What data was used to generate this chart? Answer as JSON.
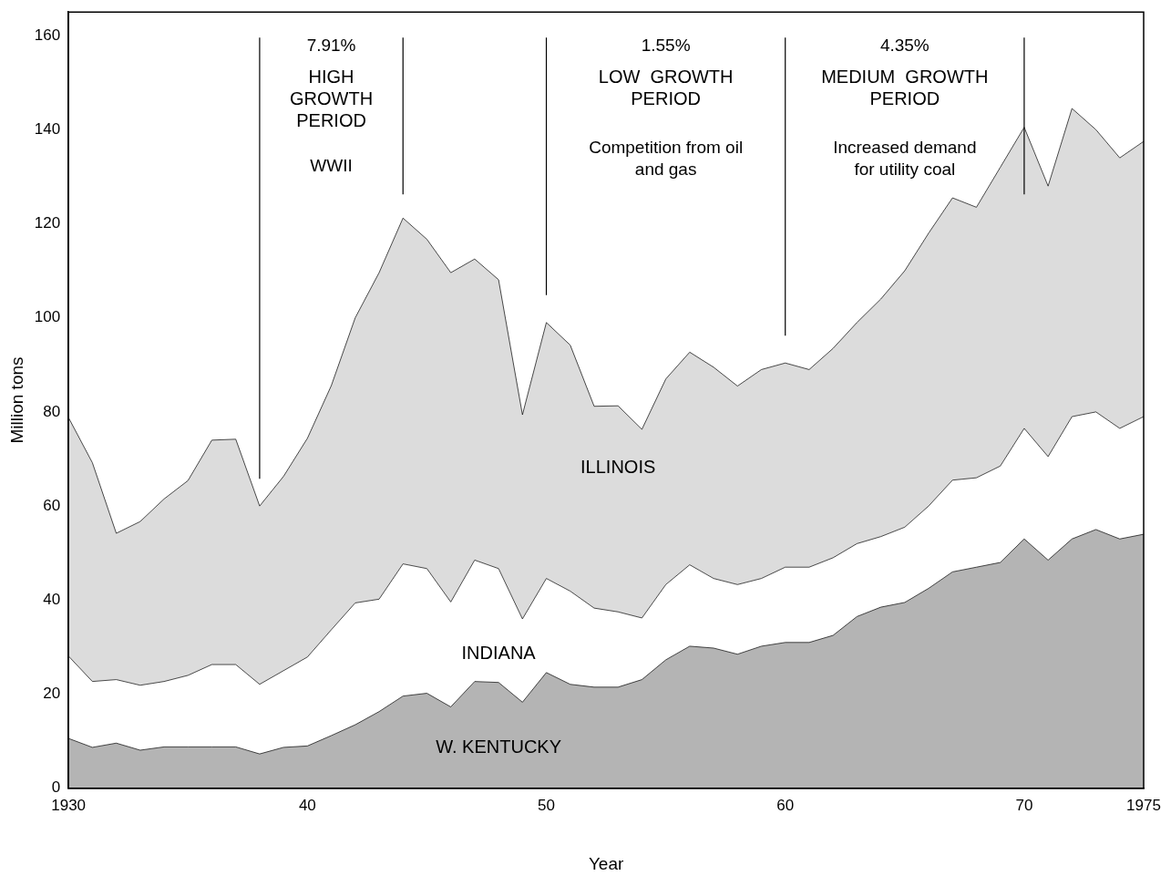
{
  "chart_data": {
    "type": "area",
    "stacked": true,
    "xlabel": "Year",
    "ylabel": "Million tons",
    "x": [
      1930,
      1931,
      1932,
      1933,
      1934,
      1935,
      1936,
      1937,
      1938,
      1939,
      1940,
      1941,
      1942,
      1943,
      1944,
      1945,
      1946,
      1947,
      1948,
      1949,
      1950,
      1951,
      1952,
      1953,
      1954,
      1955,
      1956,
      1957,
      1958,
      1959,
      1960,
      1961,
      1962,
      1963,
      1964,
      1965,
      1966,
      1967,
      1968,
      1969,
      1970,
      1971,
      1972,
      1973,
      1974,
      1975
    ],
    "series": [
      {
        "name": "W. KENTUCKY",
        "color": "#b4b4b4",
        "values": [
          10.6,
          8.7,
          9.6,
          8.1,
          8.8,
          8.8,
          8.8,
          8.8,
          7.3,
          8.7,
          9.0,
          11.2,
          13.5,
          16.3,
          19.6,
          20.2,
          17.3,
          22.7,
          22.5,
          18.3,
          24.6,
          22.1,
          21.5,
          21.5,
          23.1,
          27.3,
          30.2,
          29.8,
          28.5,
          30.2,
          31,
          31,
          32.5,
          36.5,
          38.5,
          39.5,
          42.5,
          46,
          47,
          48,
          53,
          48.5,
          53,
          55,
          53,
          54
        ]
      },
      {
        "name": "INDIANA",
        "color": "#ffffff",
        "values": [
          17.5,
          14.0,
          13.5,
          13.8,
          13.9,
          15.2,
          17.5,
          17.5,
          14.8,
          16.3,
          18.9,
          22.5,
          25.9,
          23.9,
          28.1,
          26.5,
          22.3,
          25.8,
          24.2,
          17.7,
          20.0,
          19.8,
          16.8,
          16.0,
          13.1,
          16.0,
          17.3,
          14.8,
          14.8,
          14.4,
          16,
          16,
          16.5,
          15.5,
          15,
          16,
          17.5,
          19.5,
          19,
          20.5,
          23.5,
          22,
          26,
          25,
          23.5,
          25
        ]
      },
      {
        "name": "ILLINOIS",
        "color": "#dcdcdc",
        "values": [
          50.7,
          46.5,
          31.1,
          34.8,
          38.8,
          41.4,
          47.7,
          47.9,
          37.9,
          41.3,
          46.5,
          51.9,
          60.6,
          69.4,
          73.5,
          70.0,
          70.0,
          64.0,
          61.4,
          43.4,
          54.4,
          52.3,
          42.9,
          43.8,
          40.1,
          43.7,
          45.2,
          44.9,
          42.2,
          44.4,
          43.4,
          42,
          44.5,
          47,
          50.5,
          54.5,
          58,
          60,
          57.5,
          63.5,
          64,
          57.5,
          65.5,
          60,
          57.5,
          58.5
        ]
      }
    ],
    "xlim": [
      1930,
      1975
    ],
    "xticks": [
      1930,
      {
        "value": 1940,
        "label": "40"
      },
      {
        "value": 1950,
        "label": "50"
      },
      {
        "value": 1960,
        "label": "60"
      },
      {
        "value": 1970,
        "label": "70"
      },
      1975
    ],
    "ylim": [
      0,
      165
    ],
    "yticks": [
      0,
      20,
      40,
      60,
      80,
      100,
      120,
      140,
      160
    ],
    "ref_lines": [
      {
        "axis": "x",
        "value": 1938
      },
      {
        "axis": "x",
        "value": 1944
      },
      {
        "axis": "x",
        "value": 1950
      },
      {
        "axis": "x",
        "value": 1960
      },
      {
        "axis": "x",
        "value": 1970
      }
    ],
    "annotations": [
      "7.91%",
      "HIGH\nGROWTH\nPERIOD",
      "WWII",
      "1.55%",
      "LOW  GROWTH\nPERIOD",
      "Competition from oil\nand gas",
      "4.35%",
      "MEDIUM  GROWTH\nPERIOD",
      "Increased demand\nfor utility coal"
    ],
    "grid": false,
    "legend": false,
    "marker": "none",
    "line_style": "solid"
  }
}
